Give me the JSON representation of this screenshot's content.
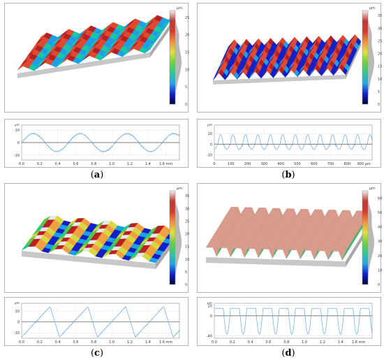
{
  "colorbar_unit": "µm",
  "palette": {
    "jet": [
      "#0a0a55",
      "#1020c8",
      "#1aa0e6",
      "#18c8a0",
      "#58c840",
      "#d8d840",
      "#f0a040",
      "#e04830",
      "#b82020",
      "#e8e8e8"
    ],
    "profile_line": "#6aa8dc",
    "grid": "#cfd6df",
    "zero_line": "#505050",
    "frame": "#b4b4b4"
  },
  "panels": [
    {
      "label": "a",
      "surface_kind": "wavy-ridges",
      "colorbar_ticks": [
        "0",
        "5",
        "10",
        "15",
        "20",
        "25"
      ],
      "colorbar_top": 27,
      "profile": {
        "y_unit": "µm",
        "y_ticks": [
          "10",
          "0",
          "-10"
        ],
        "x_ticks": [
          "0.0",
          "0.2",
          "0.4",
          "0.6",
          "0.8",
          "1.0",
          "1.2",
          "1.4",
          "1.6 mm"
        ],
        "x_max": 1.75,
        "y_range": [
          -14,
          14
        ],
        "shape": "sine",
        "period": 0.52,
        "amplitude": 8
      }
    },
    {
      "label": "b",
      "surface_kind": "sharp-ridges",
      "colorbar_ticks": [
        "0",
        "5",
        "10",
        "15",
        "20",
        "25",
        "30",
        "35"
      ],
      "colorbar_top": 37,
      "profile": {
        "y_unit": "µm",
        "y_ticks": [
          "10",
          "0",
          "-10"
        ],
        "x_ticks": [
          "0",
          "100",
          "200",
          "300",
          "400",
          "500",
          "600",
          "700",
          "800",
          "900 µm"
        ],
        "x_max": 950,
        "y_range": [
          -15,
          18
        ],
        "shape": "bumps",
        "period": 75,
        "amplitude": 10
      }
    },
    {
      "label": "c",
      "surface_kind": "wavy-ridges-2",
      "colorbar_ticks": [
        "0",
        "5",
        "10",
        "15",
        "20",
        "25",
        "30",
        "35"
      ],
      "colorbar_top": 37,
      "profile": {
        "y_unit": "µm",
        "y_ticks": [
          "10",
          "0",
          "-10"
        ],
        "x_ticks": [
          "0.0",
          "0.2",
          "0.4",
          "0.6",
          "0.8",
          "1.0",
          "1.2",
          "1.4",
          "1.6 mm"
        ],
        "x_max": 1.75,
        "y_range": [
          -15,
          17
        ],
        "shape": "sawtooth",
        "period": 0.42,
        "amplitude": 14
      }
    },
    {
      "label": "d",
      "surface_kind": "tall-ridges",
      "colorbar_ticks": [
        "0",
        "10",
        "20",
        "30",
        "40",
        "50",
        "60"
      ],
      "colorbar_top": 65,
      "profile": {
        "y_unit": "µm",
        "y_ticks": [
          "20",
          "0",
          "-40"
        ],
        "x_ticks": [
          "0.0",
          "0.2",
          "0.4",
          "0.6",
          "0.8",
          "1.0",
          "1.2",
          "1.4",
          "1.6 mm"
        ],
        "x_max": 1.75,
        "y_range": [
          -45,
          25
        ],
        "shape": "deep-troughs",
        "period": 0.18,
        "amplitude": 40
      }
    }
  ]
}
